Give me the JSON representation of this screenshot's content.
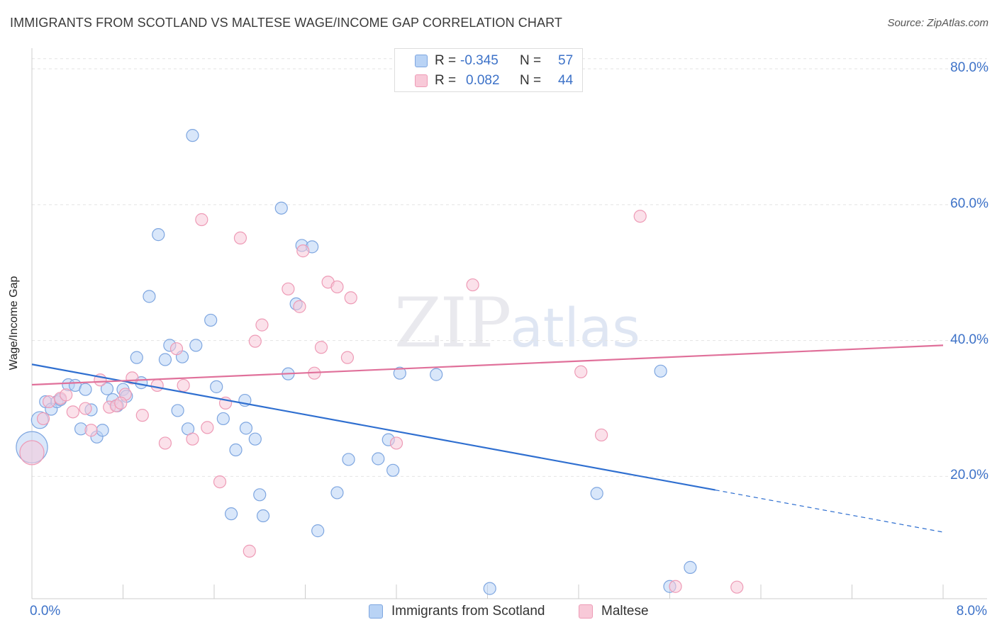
{
  "header": {
    "title": "IMMIGRANTS FROM SCOTLAND VS MALTESE WAGE/INCOME GAP CORRELATION CHART",
    "source": "Source: ZipAtlas.com"
  },
  "watermark": {
    "zip": "ZIP",
    "atlas": "atlas"
  },
  "legend": {
    "rows": [
      {
        "r_label": "R =",
        "r_value": "-0.345",
        "n_label": "N =",
        "n_value": "57",
        "color": "#b9d3f5"
      },
      {
        "r_label": "R =",
        "r_value": "0.082",
        "n_label": "N =",
        "n_value": "44",
        "color": "#f8c9d8"
      }
    ]
  },
  "chart_data": {
    "type": "scatter",
    "title": "IMMIGRANTS FROM SCOTLAND VS MALTESE WAGE/INCOME GAP CORRELATION CHART",
    "xlabel": "",
    "ylabel": "Wage/Income Gap",
    "xlim": [
      0,
      8
    ],
    "ylim": [
      2,
      82
    ],
    "x_tick_labels": [
      "0.0%",
      "8.0%"
    ],
    "y_ticks": [
      20,
      40,
      60,
      80
    ],
    "y_tick_labels": [
      "20.0%",
      "40.0%",
      "60.0%",
      "80.0%"
    ],
    "grid": true,
    "legend_position": "bottom",
    "series": [
      {
        "name": "Immigrants from Scotland",
        "color": "#7ea6e0",
        "fill": "#b9d3f5",
        "r": -0.345,
        "n": 57,
        "trend": {
          "x0": 0,
          "y0": 36.5,
          "x1": 6.0,
          "y1": 18.0,
          "dash_to_x": 8.0,
          "dash_to_y": 11.8
        },
        "points": [
          {
            "x": 0.0,
            "y": 24.3,
            "s": 2.6
          },
          {
            "x": 0.07,
            "y": 28.3,
            "s": 1.4
          },
          {
            "x": 0.12,
            "y": 31.0,
            "s": 1
          },
          {
            "x": 0.17,
            "y": 29.9,
            "s": 1
          },
          {
            "x": 0.22,
            "y": 31.0,
            "s": 1
          },
          {
            "x": 0.25,
            "y": 31.3,
            "s": 1
          },
          {
            "x": 0.32,
            "y": 33.5,
            "s": 1
          },
          {
            "x": 0.38,
            "y": 33.4,
            "s": 1
          },
          {
            "x": 0.43,
            "y": 27.0,
            "s": 1
          },
          {
            "x": 0.47,
            "y": 32.8,
            "s": 1
          },
          {
            "x": 0.52,
            "y": 29.8,
            "s": 1
          },
          {
            "x": 0.57,
            "y": 25.8,
            "s": 1
          },
          {
            "x": 0.62,
            "y": 26.8,
            "s": 1
          },
          {
            "x": 0.66,
            "y": 32.9,
            "s": 1
          },
          {
            "x": 0.71,
            "y": 31.3,
            "s": 1
          },
          {
            "x": 0.75,
            "y": 30.4,
            "s": 1
          },
          {
            "x": 0.8,
            "y": 32.8,
            "s": 1
          },
          {
            "x": 0.83,
            "y": 31.8,
            "s": 1
          },
          {
            "x": 0.92,
            "y": 37.5,
            "s": 1
          },
          {
            "x": 0.96,
            "y": 33.8,
            "s": 1
          },
          {
            "x": 1.03,
            "y": 46.5,
            "s": 1
          },
          {
            "x": 1.11,
            "y": 55.6,
            "s": 1
          },
          {
            "x": 1.17,
            "y": 37.2,
            "s": 1
          },
          {
            "x": 1.21,
            "y": 39.3,
            "s": 1
          },
          {
            "x": 1.28,
            "y": 29.7,
            "s": 1
          },
          {
            "x": 1.32,
            "y": 37.6,
            "s": 1
          },
          {
            "x": 1.37,
            "y": 27.0,
            "s": 1
          },
          {
            "x": 1.41,
            "y": 70.2,
            "s": 1
          },
          {
            "x": 1.44,
            "y": 39.3,
            "s": 1
          },
          {
            "x": 1.57,
            "y": 43.0,
            "s": 1
          },
          {
            "x": 1.62,
            "y": 33.2,
            "s": 1
          },
          {
            "x": 1.68,
            "y": 28.5,
            "s": 1
          },
          {
            "x": 1.79,
            "y": 23.9,
            "s": 1
          },
          {
            "x": 1.75,
            "y": 14.5,
            "s": 1
          },
          {
            "x": 1.87,
            "y": 31.2,
            "s": 1
          },
          {
            "x": 1.88,
            "y": 27.1,
            "s": 1
          },
          {
            "x": 1.96,
            "y": 25.5,
            "s": 1
          },
          {
            "x": 2.0,
            "y": 17.3,
            "s": 1
          },
          {
            "x": 2.03,
            "y": 14.2,
            "s": 1
          },
          {
            "x": 2.19,
            "y": 59.5,
            "s": 1
          },
          {
            "x": 2.25,
            "y": 35.1,
            "s": 1
          },
          {
            "x": 2.32,
            "y": 45.4,
            "s": 1
          },
          {
            "x": 2.37,
            "y": 54.0,
            "s": 1
          },
          {
            "x": 2.46,
            "y": 53.8,
            "s": 1
          },
          {
            "x": 2.51,
            "y": 12.0,
            "s": 1
          },
          {
            "x": 2.68,
            "y": 17.6,
            "s": 1
          },
          {
            "x": 2.78,
            "y": 22.5,
            "s": 1
          },
          {
            "x": 3.04,
            "y": 22.6,
            "s": 1
          },
          {
            "x": 3.13,
            "y": 25.4,
            "s": 1
          },
          {
            "x": 3.17,
            "y": 20.9,
            "s": 1
          },
          {
            "x": 3.23,
            "y": 35.2,
            "s": 1
          },
          {
            "x": 3.55,
            "y": 35.0,
            "s": 1
          },
          {
            "x": 4.02,
            "y": 3.5,
            "s": 1
          },
          {
            "x": 4.96,
            "y": 17.5,
            "s": 1
          },
          {
            "x": 5.52,
            "y": 35.5,
            "s": 1
          },
          {
            "x": 5.6,
            "y": 3.8,
            "s": 1
          },
          {
            "x": 5.78,
            "y": 6.6,
            "s": 1
          }
        ]
      },
      {
        "name": "Maltese",
        "color": "#ee9bb6",
        "fill": "#f8c9d8",
        "r": 0.082,
        "n": 44,
        "trend": {
          "x0": 0,
          "y0": 33.5,
          "x1": 8.0,
          "y1": 39.3
        },
        "points": [
          {
            "x": 0.0,
            "y": 23.5,
            "s": 2.0
          },
          {
            "x": 0.1,
            "y": 28.5,
            "s": 1
          },
          {
            "x": 0.25,
            "y": 31.5,
            "s": 1
          },
          {
            "x": 0.3,
            "y": 32.0,
            "s": 1
          },
          {
            "x": 0.36,
            "y": 29.5,
            "s": 1
          },
          {
            "x": 0.47,
            "y": 30.0,
            "s": 1
          },
          {
            "x": 0.52,
            "y": 26.8,
            "s": 1
          },
          {
            "x": 0.6,
            "y": 34.2,
            "s": 1
          },
          {
            "x": 0.68,
            "y": 30.2,
            "s": 1
          },
          {
            "x": 0.74,
            "y": 30.4,
            "s": 1
          },
          {
            "x": 0.82,
            "y": 32.1,
            "s": 1
          },
          {
            "x": 0.88,
            "y": 34.5,
            "s": 1
          },
          {
            "x": 0.97,
            "y": 29.0,
            "s": 1
          },
          {
            "x": 1.1,
            "y": 33.4,
            "s": 1
          },
          {
            "x": 1.17,
            "y": 24.9,
            "s": 1
          },
          {
            "x": 1.27,
            "y": 38.8,
            "s": 1
          },
          {
            "x": 1.33,
            "y": 33.4,
            "s": 1
          },
          {
            "x": 1.41,
            "y": 25.5,
            "s": 1
          },
          {
            "x": 1.49,
            "y": 57.8,
            "s": 1
          },
          {
            "x": 1.54,
            "y": 27.2,
            "s": 1
          },
          {
            "x": 1.65,
            "y": 19.2,
            "s": 1
          },
          {
            "x": 1.7,
            "y": 30.8,
            "s": 1
          },
          {
            "x": 1.83,
            "y": 55.1,
            "s": 1
          },
          {
            "x": 1.91,
            "y": 9.0,
            "s": 1
          },
          {
            "x": 1.96,
            "y": 39.9,
            "s": 1
          },
          {
            "x": 2.02,
            "y": 42.3,
            "s": 1
          },
          {
            "x": 2.25,
            "y": 47.6,
            "s": 1
          },
          {
            "x": 2.35,
            "y": 45.0,
            "s": 1
          },
          {
            "x": 2.38,
            "y": 53.2,
            "s": 1
          },
          {
            "x": 2.48,
            "y": 35.2,
            "s": 1
          },
          {
            "x": 2.54,
            "y": 39.0,
            "s": 1
          },
          {
            "x": 2.6,
            "y": 48.6,
            "s": 1
          },
          {
            "x": 2.68,
            "y": 47.9,
            "s": 1
          },
          {
            "x": 2.77,
            "y": 37.5,
            "s": 1
          },
          {
            "x": 2.8,
            "y": 46.3,
            "s": 1
          },
          {
            "x": 3.2,
            "y": 24.9,
            "s": 1
          },
          {
            "x": 3.87,
            "y": 48.2,
            "s": 1
          },
          {
            "x": 4.82,
            "y": 35.4,
            "s": 1
          },
          {
            "x": 5.0,
            "y": 26.1,
            "s": 1
          },
          {
            "x": 5.34,
            "y": 58.3,
            "s": 1
          },
          {
            "x": 5.65,
            "y": 3.8,
            "s": 1
          },
          {
            "x": 6.19,
            "y": 3.7,
            "s": 1
          },
          {
            "x": 0.15,
            "y": 31.0,
            "s": 1
          },
          {
            "x": 0.78,
            "y": 30.8,
            "s": 1
          }
        ]
      }
    ]
  }
}
